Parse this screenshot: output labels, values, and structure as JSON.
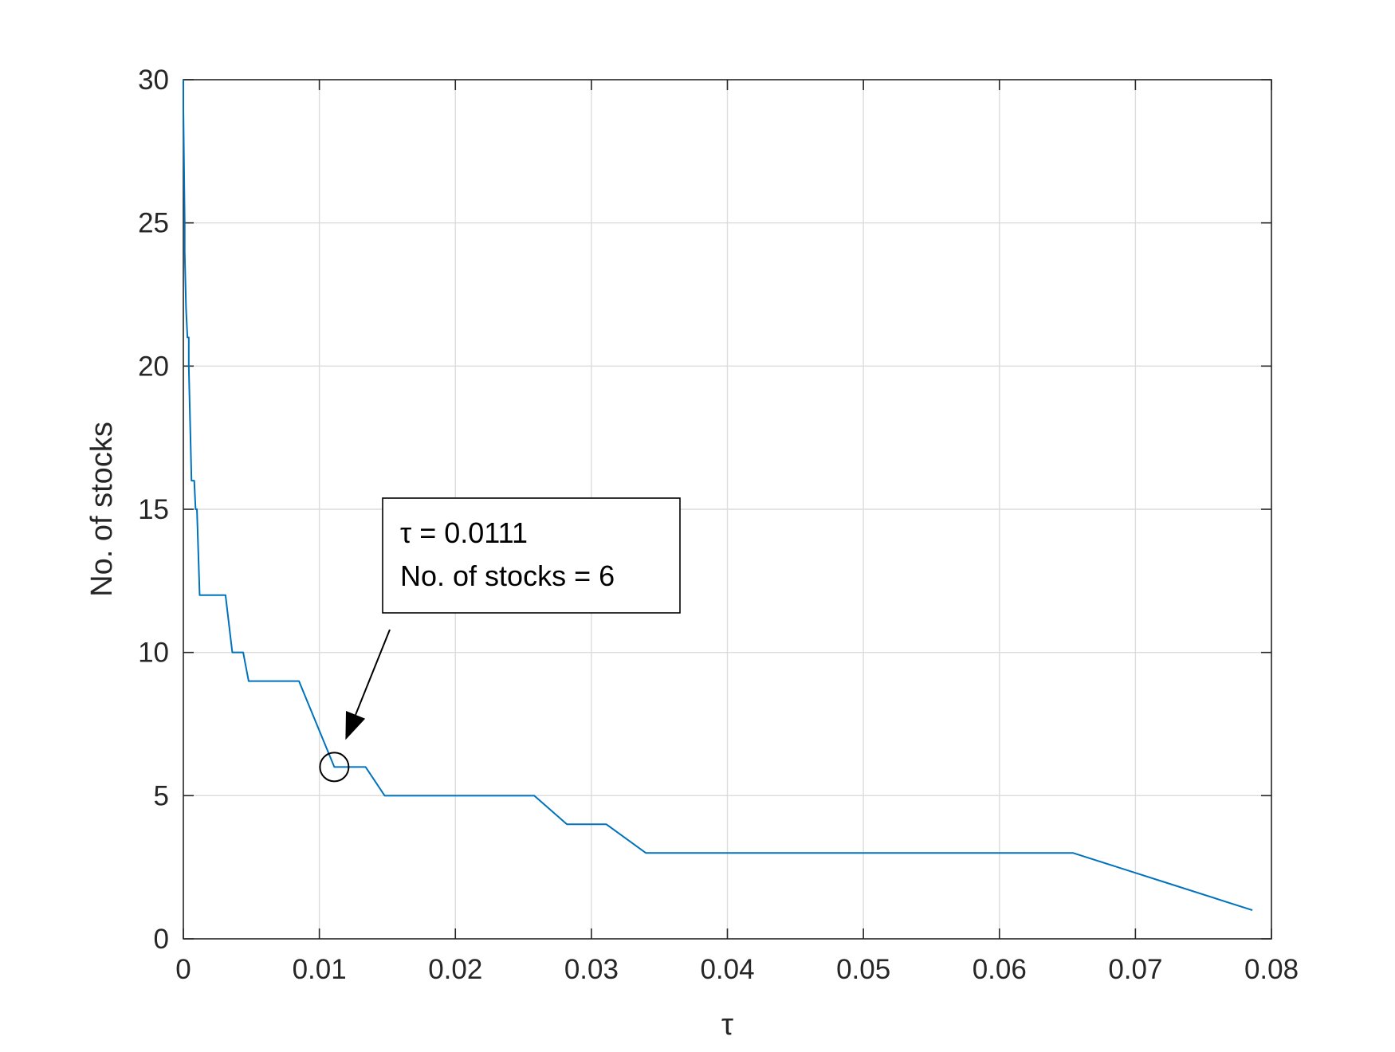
{
  "chart_data": {
    "type": "line",
    "title": "",
    "xlabel": "τ",
    "ylabel": "No. of stocks",
    "xlim": [
      0,
      0.08
    ],
    "ylim": [
      0,
      30
    ],
    "xticks": [
      0,
      0.01,
      0.02,
      0.03,
      0.04,
      0.05,
      0.06,
      0.07,
      0.08
    ],
    "xtick_labels": [
      "0",
      "0.01",
      "0.02",
      "0.03",
      "0.04",
      "0.05",
      "0.06",
      "0.07",
      "0.08"
    ],
    "yticks": [
      0,
      5,
      10,
      15,
      20,
      25,
      30
    ],
    "ytick_labels": [
      "0",
      "5",
      "10",
      "15",
      "20",
      "25",
      "30"
    ],
    "grid": true,
    "series": [
      {
        "color": "#0072BD",
        "x": [
          0,
          0,
          5e-05,
          0.0001,
          0.0001,
          0.00015,
          0.0002,
          0.0003,
          0.0003,
          0.0004,
          0.0004,
          0.0005,
          0.0006,
          0.0008,
          0.0009,
          0.001,
          0.0012,
          0.0031,
          0.0036,
          0.0044,
          0.0048,
          0.0085,
          0.0111,
          0.0134,
          0.0148,
          0.0258,
          0.0282,
          0.0311,
          0.034,
          0.0654,
          0.072,
          0.0786
        ],
        "y": [
          30,
          29,
          27,
          25,
          24,
          23,
          22,
          21,
          21,
          21,
          20,
          18,
          16,
          16,
          15,
          15,
          12,
          12,
          10,
          10,
          9,
          9,
          6,
          6,
          5,
          5,
          4,
          4,
          3,
          3,
          2,
          1
        ]
      }
    ],
    "highlight_point": {
      "x": 0.0111,
      "y": 6
    },
    "annotation": {
      "lines": [
        "τ = 0.0111",
        "No. of stocks = 6"
      ]
    }
  }
}
